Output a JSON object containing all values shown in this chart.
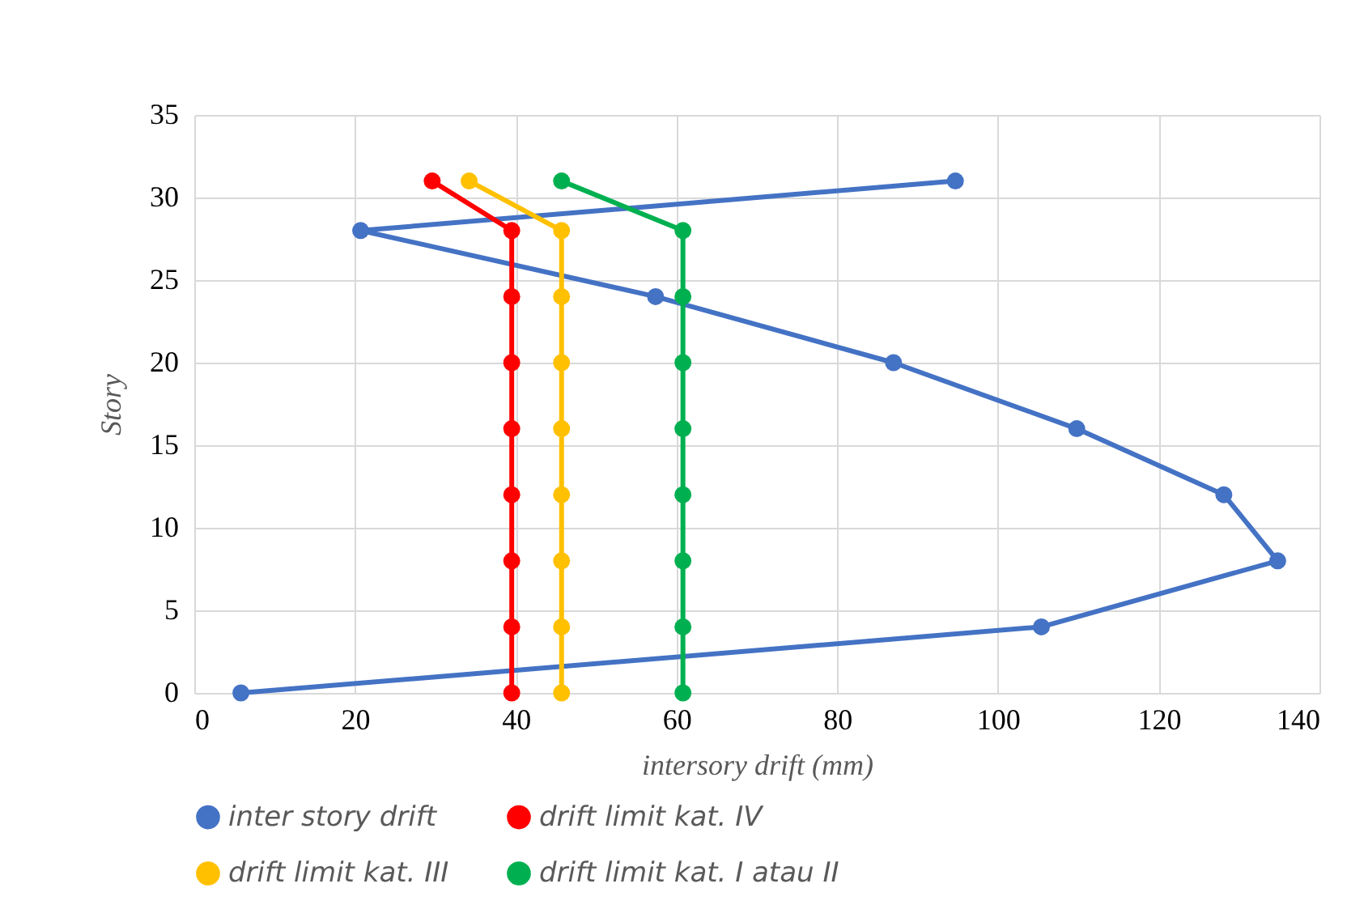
{
  "chart_data": {
    "type": "line",
    "xlabel": "intersory drift (mm)",
    "ylabel": "Story",
    "xlim": [
      0,
      140
    ],
    "xticks": [
      0,
      20,
      40,
      60,
      80,
      100,
      120,
      140
    ],
    "ylim": [
      0,
      35
    ],
    "yticks": [
      0,
      5,
      10,
      15,
      20,
      25,
      30,
      35
    ],
    "grid": true,
    "legend": "bottom",
    "marker": "circle",
    "line_style": "solid",
    "series": [
      {
        "name": "inter story drift",
        "color": "#4472c4",
        "x": [
          5.8,
          105.4,
          134.8,
          128.1,
          109.8,
          87,
          57.4,
          20.7,
          94.7
        ],
        "values": [
          0,
          4,
          8,
          12,
          16,
          20,
          24,
          28,
          31
        ]
      },
      {
        "name": "drift limit kat. IV",
        "color": "#ff0000",
        "x": [
          39.5,
          39.5,
          39.5,
          39.5,
          39.5,
          39.5,
          39.5,
          39.5,
          29.6
        ],
        "values": [
          0,
          4,
          8,
          12,
          16,
          20,
          24,
          28,
          31
        ]
      },
      {
        "name": "drift limit kat. III",
        "color": "#ffc000",
        "x": [
          45.7,
          45.7,
          45.7,
          45.7,
          45.7,
          45.7,
          45.7,
          45.7,
          34.2
        ],
        "values": [
          0,
          4,
          8,
          12,
          16,
          20,
          24,
          28,
          31
        ]
      },
      {
        "name": "drift limit kat. I atau II",
        "color": "#00b050",
        "x": [
          60.8,
          60.8,
          60.8,
          60.8,
          60.8,
          60.8,
          60.8,
          60.8,
          45.7
        ],
        "values": [
          0,
          4,
          8,
          12,
          16,
          20,
          24,
          28,
          31
        ]
      }
    ]
  }
}
